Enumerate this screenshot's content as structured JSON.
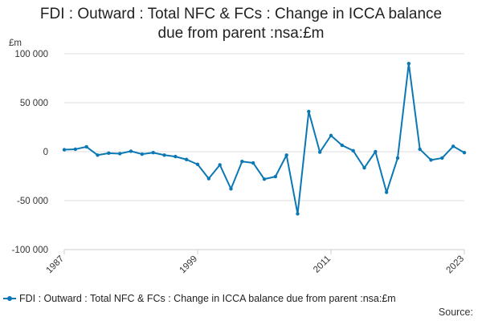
{
  "chart_data": {
    "type": "line",
    "title_lines": [
      "FDI : Outward : Total NFC & FCs : Change in ICCA balance",
      "due from parent :nsa:£m"
    ],
    "ylabel": "£m",
    "xlabel": "",
    "ylim": [
      -100000,
      100000
    ],
    "yticks": [
      100000,
      50000,
      0,
      -50000,
      -100000
    ],
    "ytick_labels": [
      "100 000",
      "50 000",
      "0",
      "-50 000",
      "-100 000"
    ],
    "xlim": [
      1987,
      2023
    ],
    "xticks": [
      1987,
      1999,
      2011,
      2023
    ],
    "xtick_labels": [
      "1987",
      "1999",
      "2011",
      "2023"
    ],
    "grid": true,
    "legend_position": "bottom",
    "series": [
      {
        "name": "FDI : Outward : Total NFC & FCs : Change in ICCA balance due from parent :nsa:£m",
        "color": "#0b78b5",
        "x": [
          1987,
          1988,
          1989,
          1990,
          1991,
          1992,
          1993,
          1994,
          1995,
          1996,
          1997,
          1998,
          1999,
          2000,
          2001,
          2002,
          2003,
          2004,
          2005,
          2006,
          2007,
          2008,
          2009,
          2010,
          2011,
          2012,
          2013,
          2014,
          2015,
          2016,
          2017,
          2018,
          2019,
          2020,
          2021,
          2022,
          2023
        ],
        "values": [
          2000,
          2500,
          5000,
          -3500,
          -1500,
          -2000,
          500,
          -2500,
          -1000,
          -3500,
          -5000,
          -8000,
          -13000,
          -27500,
          -13500,
          -38000,
          -10000,
          -11500,
          -28000,
          -25500,
          -3500,
          -63500,
          41000,
          -500,
          16500,
          6500,
          1000,
          -16500,
          0,
          -41500,
          -6500,
          90000,
          2500,
          -8500,
          -6500,
          5500,
          -1000
        ]
      }
    ],
    "source_label": "Source:"
  }
}
